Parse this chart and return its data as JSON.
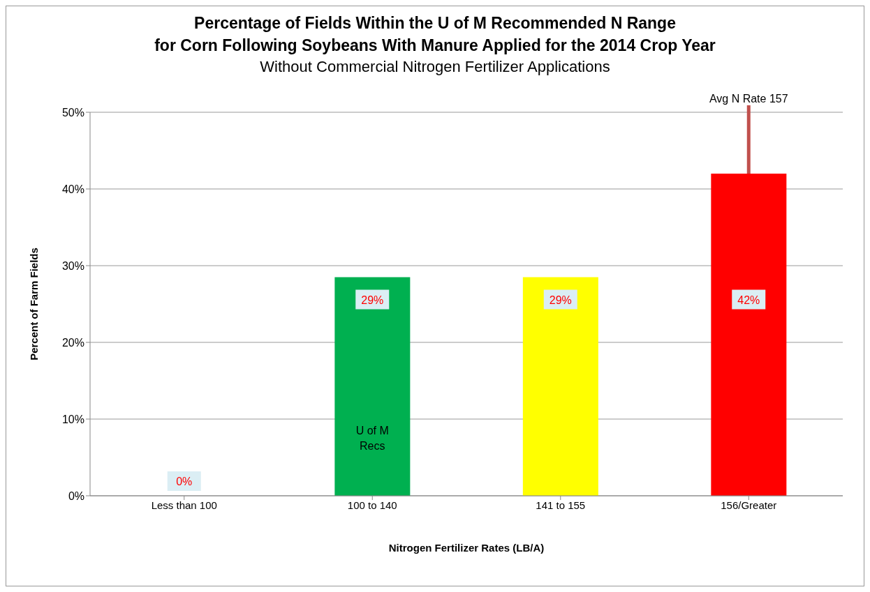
{
  "chart_data": {
    "type": "bar",
    "title": "Percentage of Fields Within the U of M Recommended N Range\nfor Corn Following Soybeans With Manure Applied for the 2014 Crop Year",
    "subtitle": "Without Commercial Nitrogen Fertilizer Applications",
    "xlabel": "Nitrogen Fertilizer Rates (LB/A)",
    "ylabel": "Percent of Farm Fields",
    "categories": [
      "Less than 100",
      "100 to 140",
      "141 to 155",
      "156/Greater"
    ],
    "values": [
      0,
      28.5,
      28.5,
      42
    ],
    "colors": [
      "#00b050",
      "#00b050",
      "#ffff00",
      "#ff0000"
    ],
    "value_labels": [
      "0%",
      "29%",
      "29%",
      "42%"
    ],
    "ylim": [
      0,
      50
    ],
    "yticks": [
      {
        "value": 0,
        "label": "0%"
      },
      {
        "value": 10,
        "label": "10%"
      },
      {
        "value": 20,
        "label": "20%"
      },
      {
        "value": 30,
        "label": "30%"
      },
      {
        "value": 40,
        "label": "40%"
      },
      {
        "value": 50,
        "label": "50%"
      }
    ],
    "grid": "y",
    "legend": false,
    "annotations": [
      "U of M Recs",
      {
        "text": "Avg N Rate 157",
        "x": "156/Greater",
        "y": 42
      }
    ]
  }
}
